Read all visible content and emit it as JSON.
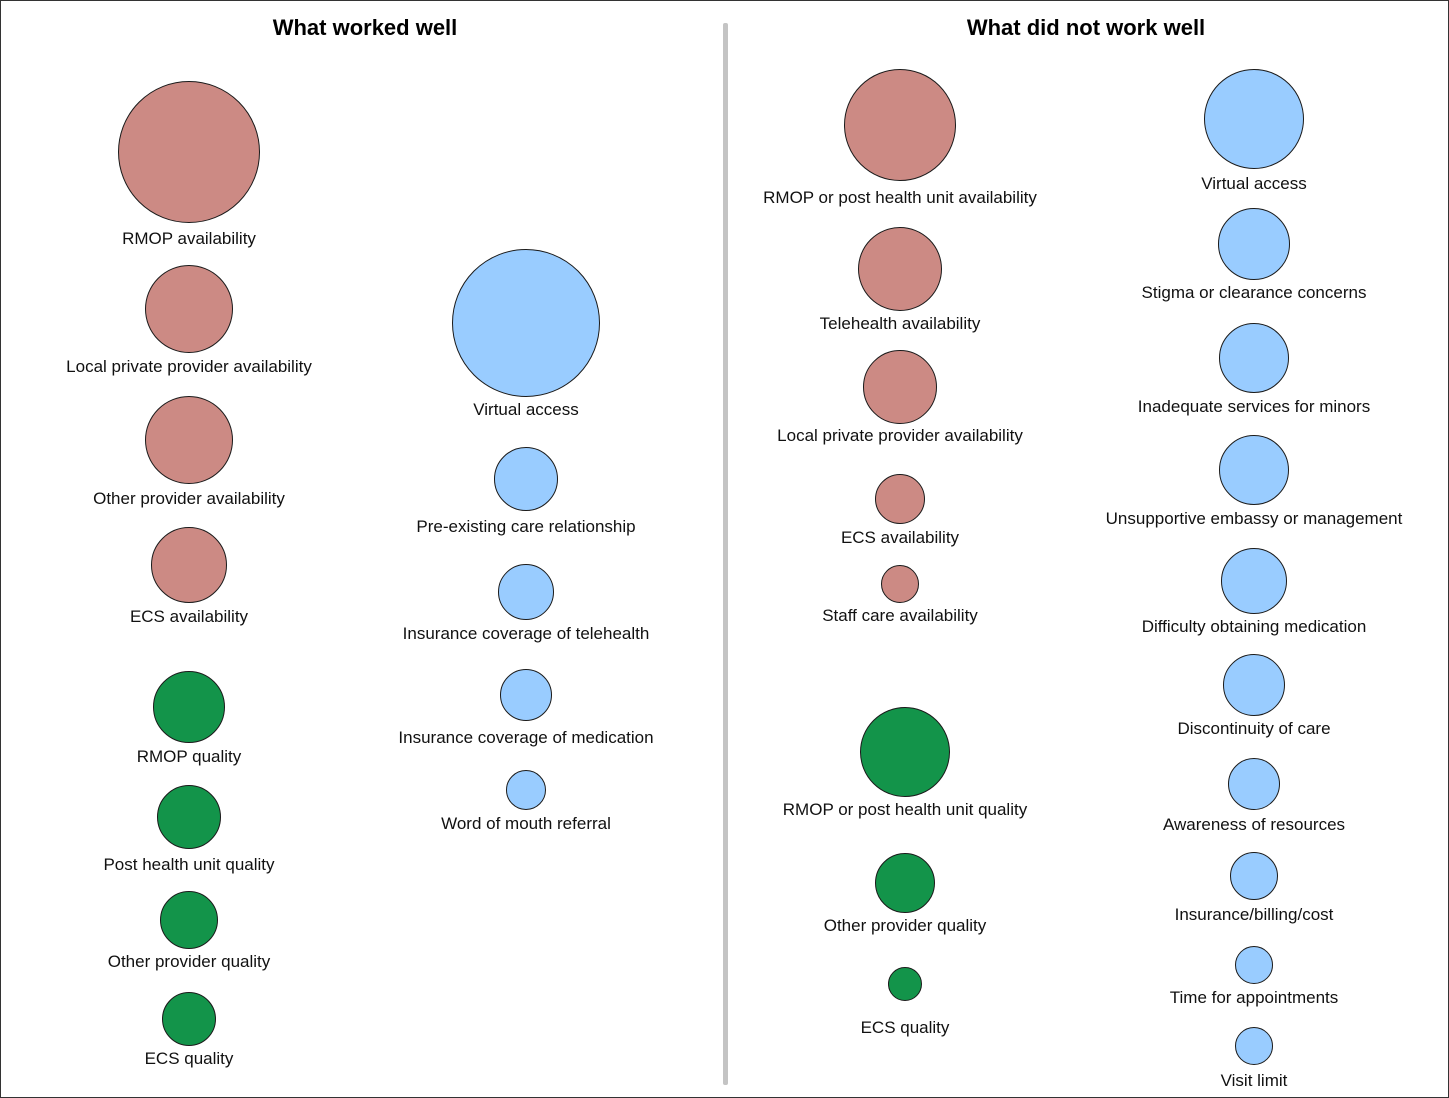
{
  "colors": {
    "availability": "#cc8a84",
    "quality": "#13944a",
    "other": "#99ccff"
  },
  "panels": [
    {
      "title": "What worked well",
      "items": [
        {
          "label": "RMOP availability",
          "category": "availability"
        },
        {
          "label": "Local private provider availability",
          "category": "availability"
        },
        {
          "label": "Other provider availability",
          "category": "availability"
        },
        {
          "label": "ECS availability",
          "category": "availability"
        },
        {
          "label": "RMOP quality",
          "category": "quality"
        },
        {
          "label": "Post health unit quality",
          "category": "quality"
        },
        {
          "label": "Other provider quality",
          "category": "quality"
        },
        {
          "label": "ECS quality",
          "category": "quality"
        },
        {
          "label": "Virtual access",
          "category": "other"
        },
        {
          "label": "Pre-existing care relationship",
          "category": "other"
        },
        {
          "label": "Insurance coverage of telehealth",
          "category": "other"
        },
        {
          "label": "Insurance coverage of medication",
          "category": "other"
        },
        {
          "label": "Word of mouth referral",
          "category": "other"
        }
      ]
    },
    {
      "title": "What did not work well",
      "items": [
        {
          "label": "RMOP or post health unit availability",
          "category": "availability"
        },
        {
          "label": "Telehealth availability",
          "category": "availability"
        },
        {
          "label": "Local private provider availability",
          "category": "availability"
        },
        {
          "label": "ECS availability",
          "category": "availability"
        },
        {
          "label": "Staff care availability",
          "category": "availability"
        },
        {
          "label": "RMOP or post health unit quality",
          "category": "quality"
        },
        {
          "label": "Other provider quality",
          "category": "quality"
        },
        {
          "label": "ECS quality",
          "category": "quality"
        },
        {
          "label": "Virtual access",
          "category": "other"
        },
        {
          "label": "Stigma or clearance concerns",
          "category": "other"
        },
        {
          "label": "Inadequate services for minors",
          "category": "other"
        },
        {
          "label": "Unsupportive embassy or management",
          "category": "other"
        },
        {
          "label": "Difficulty obtaining medication",
          "category": "other"
        },
        {
          "label": "Discontinuity of care",
          "category": "other"
        },
        {
          "label": "Awareness of resources",
          "category": "other"
        },
        {
          "label": "Insurance/billing/cost",
          "category": "other"
        },
        {
          "label": "Time for appointments",
          "category": "other"
        },
        {
          "label": "Visit limit",
          "category": "other"
        }
      ]
    }
  ]
}
